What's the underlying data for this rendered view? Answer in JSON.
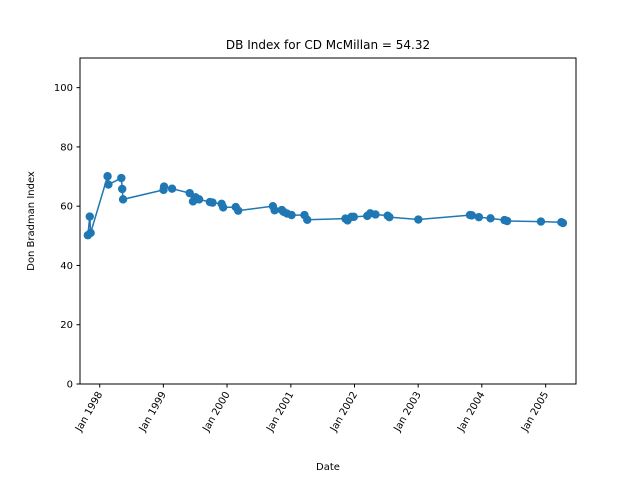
{
  "chart_data": {
    "type": "line",
    "title": "DB Index for CD McMillan = 54.32",
    "xlabel": "Date",
    "ylabel": "Don Bradman Index",
    "ylim": [
      0,
      110
    ],
    "xlim": [
      "1997-09-10",
      "2005-06-24"
    ],
    "yticks": [
      0,
      20,
      40,
      60,
      80,
      100
    ],
    "xticks": [
      {
        "date": "1998-01-01",
        "label": "Jan 1998"
      },
      {
        "date": "1999-01-01",
        "label": "Jan 1999"
      },
      {
        "date": "2000-01-01",
        "label": "Jan 2000"
      },
      {
        "date": "2001-01-01",
        "label": "Jan 2001"
      },
      {
        "date": "2002-01-01",
        "label": "Jan 2002"
      },
      {
        "date": "2003-01-01",
        "label": "Jan 2003"
      },
      {
        "date": "2004-01-01",
        "label": "Jan 2004"
      },
      {
        "date": "2005-01-01",
        "label": "Jan 2005"
      }
    ],
    "grid": false,
    "legend": false,
    "color": "#1f77b4",
    "series": [
      {
        "x": [
          "1997-10-25",
          "1997-11-05",
          "1997-11-10",
          "1998-02-15",
          "1998-02-20",
          "1998-05-05",
          "1998-05-10",
          "1998-05-15",
          "1999-01-02",
          "1999-01-05",
          "1999-02-20",
          "1999-06-01",
          "1999-06-20",
          "1999-07-05",
          "1999-07-25",
          "1999-09-25",
          "1999-10-10",
          "1999-12-01",
          "1999-12-10",
          "2000-02-20",
          "2000-03-05",
          "2000-09-20",
          "2000-09-30",
          "2000-11-10",
          "2000-11-20",
          "2000-12-10",
          "2001-01-05",
          "2001-03-20",
          "2001-04-05",
          "2001-11-10",
          "2001-11-22",
          "2001-12-15",
          "2001-12-28",
          "2002-03-15",
          "2002-04-01",
          "2002-05-01",
          "2002-07-10",
          "2002-07-20",
          "2003-01-02",
          "2003-10-25",
          "2003-11-05",
          "2003-12-15",
          "2004-02-20",
          "2004-05-10",
          "2004-05-25",
          "2004-12-05",
          "2005-04-01",
          "2005-04-10"
        ],
        "y": [
          50.2,
          56.5,
          51.0,
          70.1,
          67.3,
          69.5,
          65.8,
          62.3,
          65.5,
          66.6,
          65.9,
          64.4,
          61.6,
          63.0,
          62.3,
          61.4,
          61.2,
          60.8,
          59.6,
          59.7,
          58.5,
          60.0,
          58.6,
          58.7,
          58.1,
          57.5,
          57.0,
          57.0,
          55.4,
          55.8,
          55.2,
          56.4,
          56.4,
          56.7,
          57.6,
          57.2,
          56.8,
          56.3,
          55.5,
          57.0,
          56.9,
          56.3,
          55.9,
          55.3,
          55.0,
          54.8,
          54.6,
          54.3
        ]
      }
    ]
  }
}
